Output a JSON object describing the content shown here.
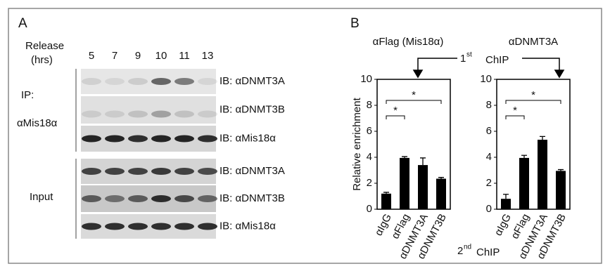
{
  "blot": {
    "panel": "A",
    "release_label": "Release",
    "hrs_label": "(hrs)",
    "times": [
      "5",
      "7",
      "9",
      "10",
      "11",
      "13"
    ],
    "ip_label": "IP:",
    "ip_antibody": "αMis18α",
    "input_label": "Input",
    "rows": [
      "IB: αDNMT3A",
      "IB: αDNMT3B",
      "IB: αMis18α",
      "IB: αDNMT3A",
      "IB: αDNMT3B",
      "IB: αMis18α"
    ]
  },
  "panel_b": {
    "panel": "B",
    "first_chip": {
      "number": "1",
      "suffix": "st",
      "label": "ChIP"
    },
    "second_chip": {
      "number": "2",
      "suffix": "nd",
      "label": "ChIP"
    }
  },
  "chart_data": [
    {
      "type": "bar",
      "title": "αFlag (Mis18α)",
      "ylabel": "Relative enrichment",
      "categories": [
        "αIgG",
        "αFlag",
        "αDNMT3A",
        "αDNMT3B"
      ],
      "values": [
        1.2,
        3.95,
        3.4,
        2.35
      ],
      "errors": [
        0.1,
        0.1,
        0.55,
        0.1
      ],
      "color": "#000000",
      "ylim": [
        0,
        10
      ],
      "yticks": [
        0,
        2,
        4,
        6,
        8,
        10
      ],
      "annotations": [
        "*",
        "*"
      ]
    },
    {
      "type": "bar",
      "title": "αDNMT3A",
      "categories": [
        "αIgG",
        "αFlag",
        "αDNMT3A",
        "αDNMT3B"
      ],
      "values": [
        0.8,
        3.95,
        5.35,
        2.95
      ],
      "errors": [
        0.35,
        0.2,
        0.25,
        0.1
      ],
      "color": "#000000",
      "ylim": [
        0,
        10
      ],
      "yticks": [
        0,
        2,
        4,
        6,
        8,
        10
      ],
      "annotations": [
        "*",
        "*"
      ]
    }
  ]
}
